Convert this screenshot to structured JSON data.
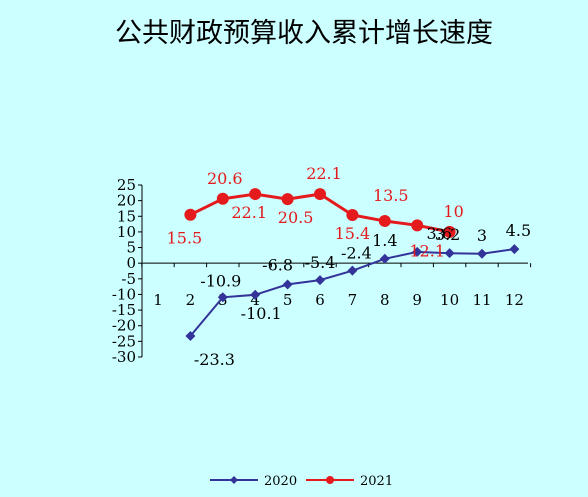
{
  "chart_data": {
    "type": "line",
    "title": "公共财政预算收入累计增长速度",
    "categories": [
      "1",
      "2",
      "3",
      "4",
      "5",
      "6",
      "7",
      "8",
      "9",
      "10",
      "11",
      "12"
    ],
    "y_ticks": [
      "25",
      "20",
      "15",
      "10",
      "5",
      "0",
      "-5",
      "-10",
      "-15",
      "-20",
      "-25",
      "-30"
    ],
    "ylim": [
      -30,
      25
    ],
    "grid": false,
    "legend_position": "bottom",
    "series": [
      {
        "name": "2020",
        "color": "#333399",
        "marker": "diamond",
        "values": [
          null,
          -23.3,
          -10.9,
          -10.1,
          -6.8,
          -5.4,
          -2.4,
          1.4,
          3.6,
          3.2,
          3,
          4.5
        ],
        "labels": [
          null,
          "-23.3",
          "-10.9",
          "-10.1",
          "-6.8",
          "-5.4",
          "-2.4",
          "1.4",
          "3.6",
          "3.2",
          "3",
          "4.5"
        ]
      },
      {
        "name": "2021",
        "color": "#e41a1c",
        "marker": "circle",
        "values": [
          null,
          15.5,
          20.6,
          22.1,
          20.5,
          22.1,
          15.4,
          13.5,
          12.1,
          10,
          null,
          null
        ],
        "labels": [
          null,
          "15.5",
          "20.6",
          "22.1",
          "20.5",
          "22.1",
          "15.4",
          "13.5",
          "12.1",
          "10",
          null,
          null
        ]
      }
    ]
  }
}
